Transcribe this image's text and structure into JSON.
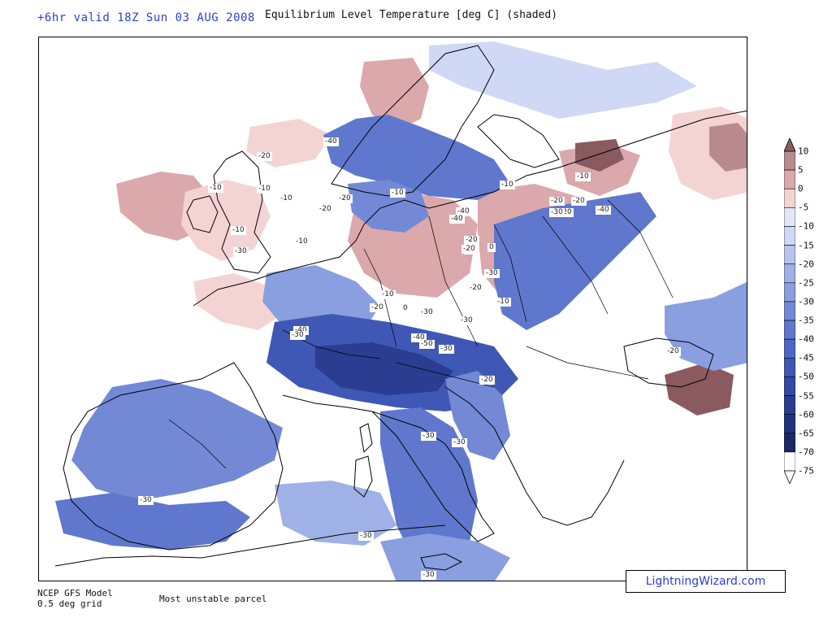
{
  "header": {
    "valid_time": "+6hr valid 18Z Sun 03 AUG 2008",
    "title": "Equilibrium Level Temperature [deg C] (shaded)"
  },
  "footer": {
    "model": "NCEP GFS Model",
    "grid": "0.5 deg grid",
    "parcel": "Most unstable parcel",
    "brand": "LightningWizard.com"
  },
  "legend": {
    "labels": [
      "10",
      "5",
      "0",
      "-5",
      "-10",
      "-15",
      "-20",
      "-25",
      "-30",
      "-35",
      "-40",
      "-45",
      "-50",
      "-55",
      "-60",
      "-65",
      "-70",
      "-75"
    ],
    "colors": [
      "#8a5a5f",
      "#b98a8e",
      "#dba8ab",
      "#f4d4d3",
      "#e2e7f8",
      "#cfd8f4",
      "#b7c5ee",
      "#9fb1e6",
      "#8a9fdf",
      "#7389d6",
      "#5f78cd",
      "#4d67c3",
      "#3f58b5",
      "#3449a4",
      "#2a3d90",
      "#22327c",
      "#1a2866",
      "#ffffff"
    ]
  },
  "contour_labels": [
    "-20",
    "-10",
    "-10",
    "-10",
    "-10",
    "-20",
    "-40",
    "-10",
    "-30",
    "-20",
    "-10",
    "-10",
    "-40",
    "-20",
    "-20",
    "-30",
    "0",
    "-20",
    "-10",
    "-20",
    "-30",
    "-30",
    "-40",
    "-40",
    "-20",
    "-30",
    "-30",
    "-50",
    "-20",
    "-30",
    "-20",
    "-30",
    "-30",
    "-10",
    "-20",
    "-20",
    "-30",
    "-40",
    "-10",
    "0",
    "-20",
    "-40",
    "-30",
    "-30"
  ]
}
